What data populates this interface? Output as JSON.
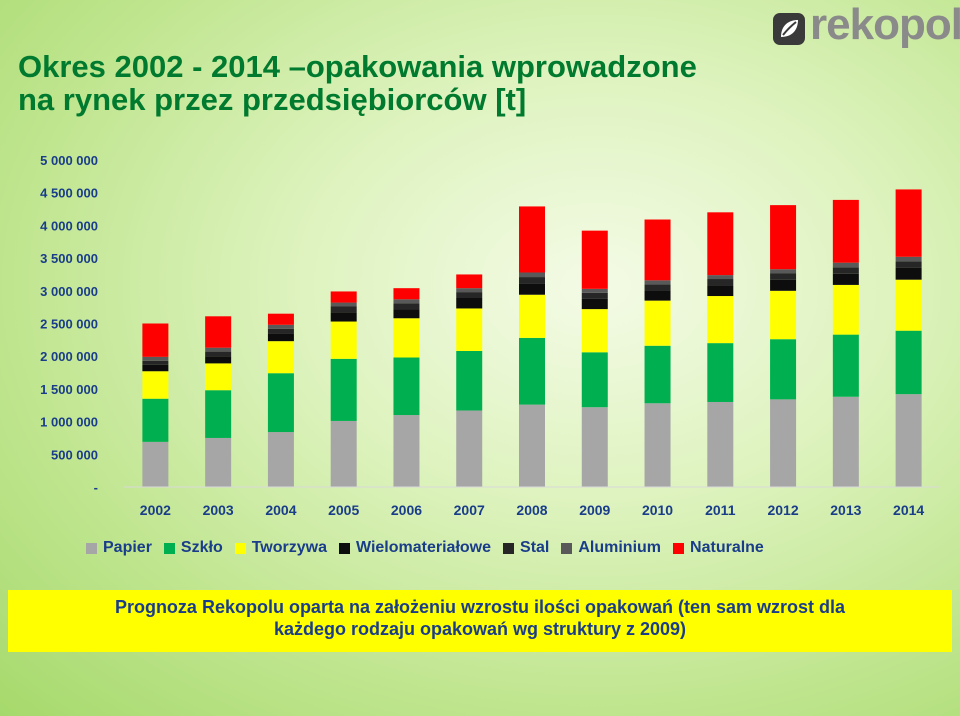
{
  "title": {
    "line1": "Okres 2002 - 2014 –opakowania wprowadzone",
    "line2": "na rynek przez przedsiębiorców [t]"
  },
  "logo": {
    "text": "rekopol",
    "icon": "recycle-leaf-icon"
  },
  "note": {
    "line1": "Prognoza Rekopolu oparta na założeniu wzrostu ilości opakowań (ten sam wzrost dla",
    "line2": "każdego rodzaju opakowań wg struktury z 2009)",
    "background": "#ffff00"
  },
  "chart_data": {
    "type": "bar",
    "stacked": true,
    "categories": [
      "2002",
      "2003",
      "2004",
      "2005",
      "2006",
      "2007",
      "2008",
      "2009",
      "2010",
      "2011",
      "2012",
      "2013",
      "2014"
    ],
    "ylim": [
      0,
      5000000
    ],
    "yticks": [
      0,
      500000,
      1000000,
      1500000,
      2000000,
      2500000,
      3000000,
      3500000,
      4000000,
      4500000,
      5000000
    ],
    "ytick_labels": [
      "-",
      "500 000",
      "1 000 000",
      "1 500 000",
      "2 000 000",
      "2 500 000",
      "3 000 000",
      "3 500 000",
      "4 000 000",
      "4 500 000",
      "5 000 000"
    ],
    "grid": false,
    "legend_position": "bottom",
    "series": [
      {
        "name": "Papier",
        "color": "#a6a6a6",
        "values": [
          690000,
          750000,
          840000,
          1010000,
          1100000,
          1170000,
          1260000,
          1220000,
          1280000,
          1300000,
          1340000,
          1380000,
          1420000
        ]
      },
      {
        "name": "Szkło",
        "color": "#00b050",
        "values": [
          660000,
          730000,
          900000,
          950000,
          880000,
          910000,
          1020000,
          840000,
          880000,
          900000,
          920000,
          950000,
          970000
        ]
      },
      {
        "name": "Tworzywa",
        "color": "#ffff00",
        "values": [
          420000,
          410000,
          490000,
          570000,
          600000,
          650000,
          660000,
          660000,
          690000,
          720000,
          740000,
          760000,
          780000
        ]
      },
      {
        "name": "Wielomateriałowe",
        "color": "#0d0d0d",
        "values": [
          100000,
          110000,
          110000,
          140000,
          140000,
          160000,
          170000,
          160000,
          160000,
          160000,
          170000,
          170000,
          180000
        ]
      },
      {
        "name": "Stal",
        "color": "#262626",
        "values": [
          60000,
          70000,
          80000,
          90000,
          90000,
          90000,
          100000,
          90000,
          90000,
          100000,
          100000,
          100000,
          100000
        ]
      },
      {
        "name": "Aluminium",
        "color": "#595959",
        "values": [
          60000,
          60000,
          60000,
          60000,
          60000,
          60000,
          70000,
          60000,
          60000,
          60000,
          60000,
          70000,
          70000
        ]
      },
      {
        "name": "Naturalne",
        "color": "#ff0000",
        "values": [
          510000,
          480000,
          170000,
          170000,
          170000,
          210000,
          1010000,
          890000,
          930000,
          960000,
          980000,
          960000,
          1030000
        ]
      }
    ]
  }
}
